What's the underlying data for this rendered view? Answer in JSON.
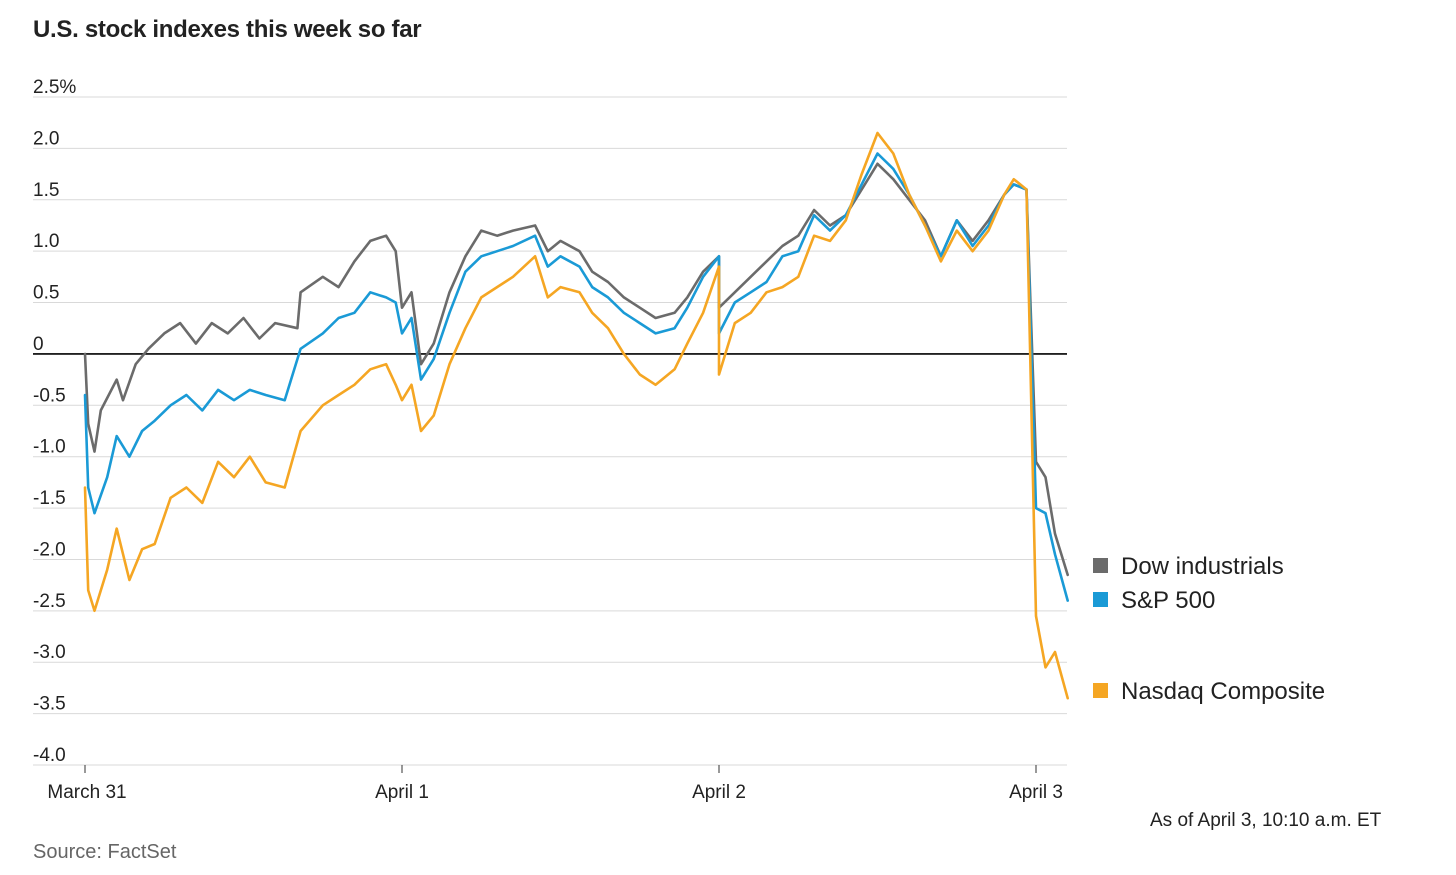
{
  "title": "U.S. stock indexes this week so far",
  "note": "As of April 3, 10:10 a.m. ET",
  "source": "Source: FactSet",
  "chart_data": {
    "type": "line",
    "ylim": [
      -4.0,
      2.5
    ],
    "yticks": [
      2.5,
      2.0,
      1.5,
      1.0,
      0.5,
      0,
      -0.5,
      -1.0,
      -1.5,
      -2.0,
      -2.5,
      -3.0,
      -3.5,
      -4.0
    ],
    "ytick_labels": [
      "2.5%",
      "2.0",
      "1.5",
      "1.0",
      "0.5",
      "0",
      "-0.5",
      "-1.0",
      "-1.5",
      "-2.0",
      "-2.5",
      "-3.0",
      "-3.5",
      "-4.0"
    ],
    "xlim": [
      0,
      3.1
    ],
    "xticks": [
      0,
      1,
      2,
      3
    ],
    "xtick_labels": [
      "March 31",
      "April 1",
      "April 2",
      "April 3"
    ],
    "grid": true,
    "legend_position": "right",
    "series": [
      {
        "name": "Dow industrials",
        "color": "#6b6b6b",
        "points": [
          [
            0,
            0.0
          ],
          [
            0.01,
            -0.68
          ],
          [
            0.03,
            -0.95
          ],
          [
            0.05,
            -0.55
          ],
          [
            0.1,
            -0.25
          ],
          [
            0.12,
            -0.45
          ],
          [
            0.16,
            -0.1
          ],
          [
            0.2,
            0.05
          ],
          [
            0.25,
            0.2
          ],
          [
            0.3,
            0.3
          ],
          [
            0.35,
            0.1
          ],
          [
            0.4,
            0.3
          ],
          [
            0.45,
            0.2
          ],
          [
            0.5,
            0.35
          ],
          [
            0.55,
            0.15
          ],
          [
            0.6,
            0.3
          ],
          [
            0.67,
            0.25
          ],
          [
            0.68,
            0.6
          ],
          [
            0.75,
            0.75
          ],
          [
            0.8,
            0.65
          ],
          [
            0.85,
            0.9
          ],
          [
            0.9,
            1.1
          ],
          [
            0.95,
            1.15
          ],
          [
            0.98,
            1.0
          ],
          [
            1.0,
            0.45
          ],
          [
            1.03,
            0.6
          ],
          [
            1.06,
            -0.1
          ],
          [
            1.1,
            0.1
          ],
          [
            1.15,
            0.6
          ],
          [
            1.2,
            0.95
          ],
          [
            1.25,
            1.2
          ],
          [
            1.3,
            1.15
          ],
          [
            1.35,
            1.2
          ],
          [
            1.42,
            1.25
          ],
          [
            1.46,
            1.0
          ],
          [
            1.5,
            1.1
          ],
          [
            1.56,
            1.0
          ],
          [
            1.6,
            0.8
          ],
          [
            1.65,
            0.7
          ],
          [
            1.7,
            0.55
          ],
          [
            1.75,
            0.45
          ],
          [
            1.8,
            0.35
          ],
          [
            1.86,
            0.4
          ],
          [
            1.9,
            0.55
          ],
          [
            1.95,
            0.8
          ],
          [
            2.0,
            0.95
          ],
          [
            2.0,
            0.45
          ],
          [
            2.05,
            0.6
          ],
          [
            2.1,
            0.75
          ],
          [
            2.15,
            0.9
          ],
          [
            2.2,
            1.05
          ],
          [
            2.25,
            1.15
          ],
          [
            2.3,
            1.4
          ],
          [
            2.35,
            1.25
          ],
          [
            2.4,
            1.35
          ],
          [
            2.45,
            1.6
          ],
          [
            2.5,
            1.85
          ],
          [
            2.55,
            1.7
          ],
          [
            2.6,
            1.5
          ],
          [
            2.65,
            1.3
          ],
          [
            2.7,
            0.95
          ],
          [
            2.75,
            1.3
          ],
          [
            2.8,
            1.1
          ],
          [
            2.85,
            1.3
          ],
          [
            2.9,
            1.55
          ],
          [
            2.93,
            1.65
          ],
          [
            2.97,
            1.6
          ],
          [
            3.0,
            -1.05
          ],
          [
            3.03,
            -1.2
          ],
          [
            3.06,
            -1.75
          ],
          [
            3.1,
            -2.15
          ]
        ]
      },
      {
        "name": "S&P 500",
        "color": "#1a9ad6",
        "points": [
          [
            0,
            -0.4
          ],
          [
            0.01,
            -1.3
          ],
          [
            0.03,
            -1.55
          ],
          [
            0.07,
            -1.2
          ],
          [
            0.1,
            -0.8
          ],
          [
            0.14,
            -1.0
          ],
          [
            0.18,
            -0.75
          ],
          [
            0.22,
            -0.65
          ],
          [
            0.27,
            -0.5
          ],
          [
            0.32,
            -0.4
          ],
          [
            0.37,
            -0.55
          ],
          [
            0.42,
            -0.35
          ],
          [
            0.47,
            -0.45
          ],
          [
            0.52,
            -0.35
          ],
          [
            0.57,
            -0.4
          ],
          [
            0.63,
            -0.45
          ],
          [
            0.68,
            0.05
          ],
          [
            0.75,
            0.2
          ],
          [
            0.8,
            0.35
          ],
          [
            0.85,
            0.4
          ],
          [
            0.9,
            0.6
          ],
          [
            0.95,
            0.55
          ],
          [
            0.98,
            0.5
          ],
          [
            1.0,
            0.2
          ],
          [
            1.03,
            0.35
          ],
          [
            1.06,
            -0.25
          ],
          [
            1.1,
            -0.05
          ],
          [
            1.15,
            0.4
          ],
          [
            1.2,
            0.8
          ],
          [
            1.25,
            0.95
          ],
          [
            1.3,
            1.0
          ],
          [
            1.35,
            1.05
          ],
          [
            1.42,
            1.15
          ],
          [
            1.46,
            0.85
          ],
          [
            1.5,
            0.95
          ],
          [
            1.56,
            0.85
          ],
          [
            1.6,
            0.65
          ],
          [
            1.65,
            0.55
          ],
          [
            1.7,
            0.4
          ],
          [
            1.75,
            0.3
          ],
          [
            1.8,
            0.2
          ],
          [
            1.86,
            0.25
          ],
          [
            1.9,
            0.45
          ],
          [
            1.95,
            0.75
          ],
          [
            2.0,
            0.95
          ],
          [
            2.0,
            0.2
          ],
          [
            2.05,
            0.5
          ],
          [
            2.1,
            0.6
          ],
          [
            2.15,
            0.7
          ],
          [
            2.2,
            0.95
          ],
          [
            2.25,
            1.0
          ],
          [
            2.3,
            1.35
          ],
          [
            2.35,
            1.2
          ],
          [
            2.4,
            1.35
          ],
          [
            2.45,
            1.65
          ],
          [
            2.5,
            1.95
          ],
          [
            2.55,
            1.8
          ],
          [
            2.6,
            1.55
          ],
          [
            2.65,
            1.25
          ],
          [
            2.7,
            0.95
          ],
          [
            2.75,
            1.3
          ],
          [
            2.8,
            1.05
          ],
          [
            2.85,
            1.25
          ],
          [
            2.9,
            1.55
          ],
          [
            2.93,
            1.65
          ],
          [
            2.97,
            1.6
          ],
          [
            3.0,
            -1.5
          ],
          [
            3.03,
            -1.55
          ],
          [
            3.06,
            -1.95
          ],
          [
            3.1,
            -2.4
          ]
        ]
      },
      {
        "name": "Nasdaq Composite",
        "color": "#f5a623",
        "points": [
          [
            0,
            -1.3
          ],
          [
            0.01,
            -2.3
          ],
          [
            0.03,
            -2.5
          ],
          [
            0.07,
            -2.1
          ],
          [
            0.1,
            -1.7
          ],
          [
            0.14,
            -2.2
          ],
          [
            0.18,
            -1.9
          ],
          [
            0.22,
            -1.85
          ],
          [
            0.27,
            -1.4
          ],
          [
            0.32,
            -1.3
          ],
          [
            0.37,
            -1.45
          ],
          [
            0.42,
            -1.05
          ],
          [
            0.47,
            -1.2
          ],
          [
            0.52,
            -1.0
          ],
          [
            0.57,
            -1.25
          ],
          [
            0.63,
            -1.3
          ],
          [
            0.68,
            -0.75
          ],
          [
            0.75,
            -0.5
          ],
          [
            0.8,
            -0.4
          ],
          [
            0.85,
            -0.3
          ],
          [
            0.9,
            -0.15
          ],
          [
            0.95,
            -0.1
          ],
          [
            0.98,
            -0.3
          ],
          [
            1.0,
            -0.45
          ],
          [
            1.03,
            -0.3
          ],
          [
            1.06,
            -0.75
          ],
          [
            1.1,
            -0.6
          ],
          [
            1.15,
            -0.1
          ],
          [
            1.2,
            0.25
          ],
          [
            1.25,
            0.55
          ],
          [
            1.3,
            0.65
          ],
          [
            1.35,
            0.75
          ],
          [
            1.42,
            0.95
          ],
          [
            1.46,
            0.55
          ],
          [
            1.5,
            0.65
          ],
          [
            1.56,
            0.6
          ],
          [
            1.6,
            0.4
          ],
          [
            1.65,
            0.25
          ],
          [
            1.7,
            0.0
          ],
          [
            1.75,
            -0.2
          ],
          [
            1.8,
            -0.3
          ],
          [
            1.86,
            -0.15
          ],
          [
            1.9,
            0.1
          ],
          [
            1.95,
            0.4
          ],
          [
            2.0,
            0.85
          ],
          [
            2.0,
            -0.2
          ],
          [
            2.05,
            0.3
          ],
          [
            2.1,
            0.4
          ],
          [
            2.15,
            0.6
          ],
          [
            2.2,
            0.65
          ],
          [
            2.25,
            0.75
          ],
          [
            2.3,
            1.15
          ],
          [
            2.35,
            1.1
          ],
          [
            2.4,
            1.3
          ],
          [
            2.45,
            1.75
          ],
          [
            2.5,
            2.15
          ],
          [
            2.55,
            1.95
          ],
          [
            2.6,
            1.55
          ],
          [
            2.65,
            1.25
          ],
          [
            2.7,
            0.9
          ],
          [
            2.75,
            1.2
          ],
          [
            2.8,
            1.0
          ],
          [
            2.85,
            1.2
          ],
          [
            2.9,
            1.55
          ],
          [
            2.93,
            1.7
          ],
          [
            2.97,
            1.6
          ],
          [
            3.0,
            -2.55
          ],
          [
            3.03,
            -3.05
          ],
          [
            3.06,
            -2.9
          ],
          [
            3.1,
            -3.35
          ]
        ]
      }
    ]
  }
}
